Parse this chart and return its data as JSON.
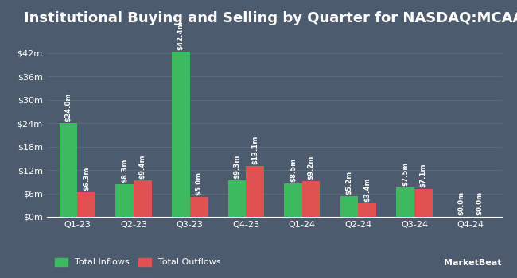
{
  "title": "Institutional Buying and Selling by Quarter for NASDAQ:MCAA",
  "quarters": [
    "Q1-23",
    "Q2-23",
    "Q3-23",
    "Q4-23",
    "Q1-24",
    "Q2-24",
    "Q3-24",
    "Q4-24"
  ],
  "inflows": [
    24.0,
    8.3,
    42.4,
    9.3,
    8.5,
    5.2,
    7.5,
    0.0
  ],
  "outflows": [
    6.3,
    9.4,
    5.0,
    13.1,
    9.2,
    3.4,
    7.1,
    0.0
  ],
  "inflow_labels": [
    "$24.0m",
    "$8.3m",
    "$42.4m",
    "$9.3m",
    "$8.5m",
    "$5.2m",
    "$7.5m",
    "$0.0m"
  ],
  "outflow_labels": [
    "$6.3m",
    "$9.4m",
    "$5.0m",
    "$13.1m",
    "$9.2m",
    "$3.4m",
    "$7.1m",
    "$0.0m"
  ],
  "inflow_color": "#3dba5f",
  "outflow_color": "#e05252",
  "bg_color": "#4d5b6e",
  "text_color": "#ffffff",
  "grid_color": "#5c6a7c",
  "yticks": [
    0,
    6,
    12,
    18,
    24,
    30,
    36,
    42
  ],
  "ytick_labels": [
    "$0m",
    "$6m",
    "$12m",
    "$18m",
    "$24m",
    "$30m",
    "$36m",
    "$42m"
  ],
  "ylim": [
    0,
    47
  ],
  "legend_labels": [
    "Total Inflows",
    "Total Outflows"
  ],
  "bar_width": 0.32,
  "title_fontsize": 13,
  "label_fontsize": 6.2,
  "tick_fontsize": 8,
  "legend_fontsize": 8
}
